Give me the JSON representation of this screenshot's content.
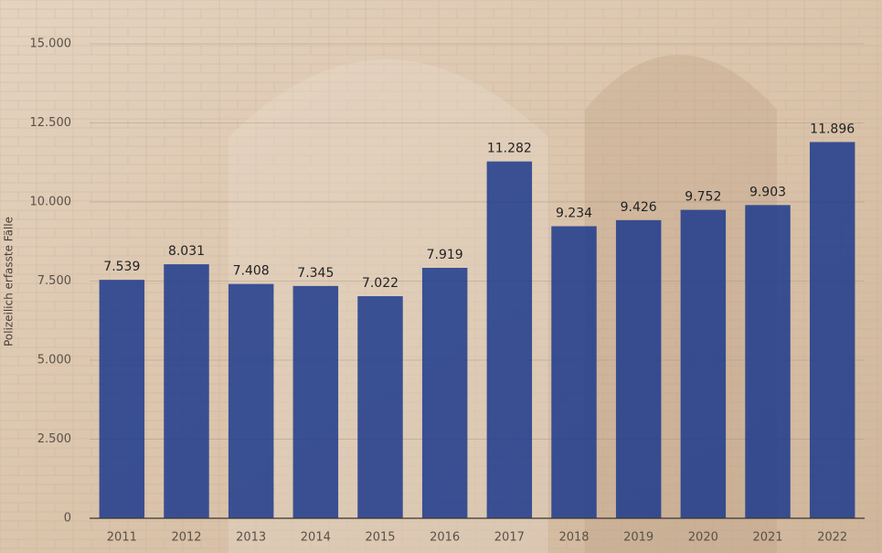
{
  "chart_data": {
    "type": "bar",
    "y_label": "Polizeilich erfasste Fälle",
    "categories": [
      "2011",
      "2012",
      "2013",
      "2014",
      "2015",
      "2016",
      "2017",
      "2018",
      "2019",
      "2020",
      "2021",
      "2022"
    ],
    "values": [
      7539,
      8031,
      7408,
      7345,
      7022,
      7919,
      11282,
      9234,
      9426,
      9752,
      9903,
      11896
    ],
    "value_labels": [
      "7.539",
      "8.031",
      "7.408",
      "7.345",
      "7.022",
      "7.919",
      "11.282",
      "9.234",
      "9.426",
      "9.752",
      "9.903",
      "11.896"
    ],
    "color": "#1c3a8c",
    "ylim": [
      0,
      15000
    ],
    "yticks": [
      0,
      {
        "value": 2500,
        "label": "2.500"
      },
      {
        "value": 5000,
        "label": "5.000"
      },
      {
        "value": 7500,
        "label": "7.500"
      },
      {
        "value": 10000,
        "label": "10.000"
      },
      {
        "value": 12500,
        "label": "12.500"
      },
      {
        "value": 15000,
        "label": "15.000"
      }
    ],
    "grid": true
  }
}
